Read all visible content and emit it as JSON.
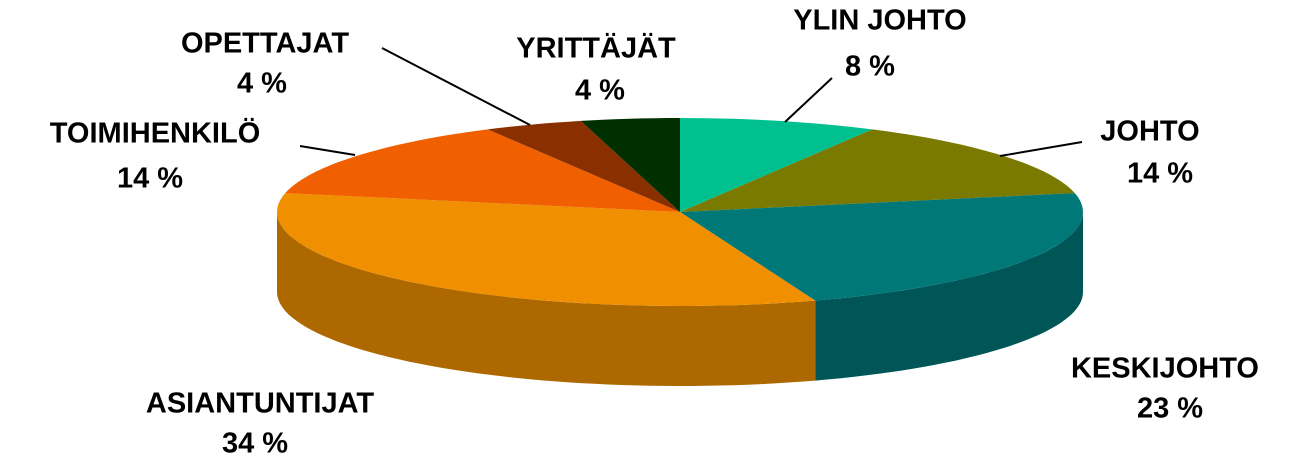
{
  "chart_data": {
    "type": "pie",
    "categories": [
      "YLIN JOHTO",
      "JOHTO",
      "KESKIJOHTO",
      "ASIANTUNTIJAT",
      "TOIMIHENKILÖ",
      "OPETTAJAT",
      "YRITTÄJÄT"
    ],
    "values": [
      8,
      14,
      23,
      34,
      14,
      4,
      4
    ],
    "value_labels": [
      "8 %",
      "14 %",
      "23 %",
      "34 %",
      "14 %",
      "4 %",
      "4 %"
    ],
    "colors": [
      "#00c090",
      "#7a7a00",
      "#007878",
      "#f09000",
      "#f06000",
      "#8a3000",
      "#003000"
    ]
  }
}
